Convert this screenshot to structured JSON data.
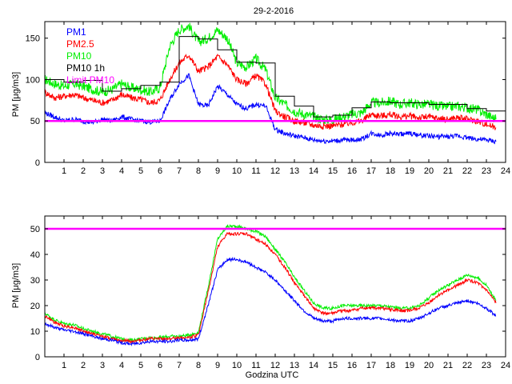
{
  "chart_data": [
    {
      "type": "line",
      "title": "29-2-2016",
      "xlabel": "",
      "ylabel": "PM [μg/m3]",
      "xlim": [
        0,
        24
      ],
      "ylim": [
        0,
        170
      ],
      "xticks": [
        1,
        2,
        3,
        4,
        5,
        6,
        7,
        8,
        9,
        10,
        11,
        12,
        13,
        14,
        15,
        16,
        17,
        18,
        19,
        20,
        21,
        22,
        23,
        24
      ],
      "yticks": [
        0,
        50,
        100,
        150
      ],
      "grid": false,
      "legend_position": "top-left",
      "colors": {
        "PM1": "#0000ff",
        "PM2.5": "#ff0000",
        "PM10": "#00ee00",
        "PM10 1h": "#000000",
        "Limit PM10": "#ff00ff"
      },
      "series": [
        {
          "name": "PM1",
          "x": [
            0.0,
            0.5,
            1.0,
            1.5,
            2.0,
            2.5,
            3.0,
            3.5,
            4.0,
            4.5,
            5.0,
            5.5,
            6.0,
            6.5,
            7.0,
            7.5,
            8.0,
            8.5,
            9.0,
            9.5,
            10.0,
            10.5,
            11.0,
            11.5,
            12.0,
            12.5,
            13.0,
            13.5,
            14.0,
            14.5,
            15.0,
            15.5,
            16.0,
            16.5,
            17.0,
            17.5,
            18.0,
            18.5,
            19.0,
            19.5,
            20.0,
            20.5,
            21.0,
            21.5,
            22.0,
            22.5,
            23.0,
            23.5
          ],
          "values": [
            60,
            55,
            50,
            52,
            50,
            48,
            52,
            50,
            55,
            52,
            50,
            49,
            50,
            75,
            95,
            105,
            70,
            68,
            92,
            82,
            70,
            65,
            70,
            68,
            40,
            35,
            32,
            30,
            27,
            26,
            26,
            27,
            27,
            28,
            35,
            33,
            35,
            34,
            35,
            33,
            32,
            31,
            31,
            32,
            30,
            28,
            27,
            25
          ]
        },
        {
          "name": "PM2.5",
          "x": [
            0.0,
            0.5,
            1.0,
            1.5,
            2.0,
            2.5,
            3.0,
            3.5,
            4.0,
            4.5,
            5.0,
            5.5,
            6.0,
            6.5,
            7.0,
            7.5,
            8.0,
            8.5,
            9.0,
            9.5,
            10.0,
            10.5,
            11.0,
            11.5,
            12.0,
            12.5,
            13.0,
            13.5,
            14.0,
            14.5,
            15.0,
            15.5,
            16.0,
            16.5,
            17.0,
            17.5,
            18.0,
            18.5,
            19.0,
            19.5,
            20.0,
            20.5,
            21.0,
            21.5,
            22.0,
            22.5,
            23.0,
            23.5
          ],
          "values": [
            85,
            78,
            80,
            82,
            78,
            75,
            72,
            75,
            82,
            78,
            76,
            72,
            75,
            100,
            120,
            130,
            110,
            115,
            128,
            118,
            100,
            95,
            105,
            95,
            62,
            55,
            50,
            48,
            45,
            44,
            44,
            46,
            48,
            50,
            58,
            56,
            58,
            55,
            56,
            54,
            55,
            53,
            52,
            54,
            52,
            50,
            46,
            42
          ]
        },
        {
          "name": "PM10",
          "x": [
            0.0,
            0.5,
            1.0,
            1.5,
            2.0,
            2.5,
            3.0,
            3.5,
            4.0,
            4.5,
            5.0,
            5.5,
            6.0,
            6.5,
            7.0,
            7.5,
            8.0,
            8.5,
            9.0,
            9.5,
            10.0,
            10.5,
            11.0,
            11.5,
            12.0,
            12.5,
            13.0,
            13.5,
            14.0,
            14.5,
            15.0,
            15.5,
            16.0,
            16.5,
            17.0,
            17.5,
            18.0,
            18.5,
            19.0,
            19.5,
            20.0,
            20.5,
            21.0,
            21.5,
            22.0,
            22.5,
            23.0,
            23.5
          ],
          "values": [
            100,
            95,
            92,
            95,
            92,
            88,
            85,
            88,
            95,
            90,
            88,
            85,
            90,
            140,
            160,
            165,
            145,
            150,
            160,
            150,
            120,
            115,
            125,
            112,
            78,
            70,
            62,
            58,
            55,
            52,
            52,
            55,
            58,
            60,
            72,
            72,
            74,
            70,
            72,
            70,
            70,
            68,
            67,
            68,
            66,
            64,
            58,
            52
          ]
        },
        {
          "name": "PM10 1h",
          "x": [
            0,
            1,
            1,
            2,
            2,
            3,
            3,
            4,
            4,
            5,
            5,
            6,
            6,
            7,
            7,
            8,
            8,
            9,
            9,
            10,
            10,
            11,
            11,
            12,
            12,
            13,
            13,
            14,
            14,
            15,
            15,
            16,
            16,
            17,
            17,
            18,
            18,
            19,
            19,
            20,
            20,
            21,
            21,
            22,
            22,
            23,
            23,
            24
          ],
          "values": [
            100,
            100,
            97,
            97,
            99,
            99,
            86,
            86,
            89,
            89,
            93,
            93,
            97,
            97,
            152,
            152,
            149,
            149,
            136,
            136,
            121,
            121,
            120,
            120,
            80,
            80,
            68,
            68,
            55,
            55,
            57,
            57,
            66,
            66,
            73,
            73,
            72,
            72,
            72,
            72,
            70,
            70,
            70,
            70,
            65,
            65,
            62,
            62
          ]
        },
        {
          "name": "Limit PM10",
          "x": [
            0,
            24
          ],
          "values": [
            50,
            50
          ]
        }
      ]
    },
    {
      "type": "line",
      "title": "",
      "xlabel": "Godzina UTC",
      "ylabel": "PM [μg/m3]",
      "xlim": [
        0,
        24
      ],
      "ylim": [
        0,
        55
      ],
      "xticks": [
        1,
        2,
        3,
        4,
        5,
        6,
        7,
        8,
        9,
        10,
        11,
        12,
        13,
        14,
        15,
        16,
        17,
        18,
        19,
        20,
        21,
        22,
        23,
        24
      ],
      "yticks": [
        0,
        10,
        20,
        30,
        40,
        50
      ],
      "grid": false,
      "colors": {
        "PM1": "#0000ff",
        "PM2.5": "#ff0000",
        "PM10": "#00ee00",
        "Limit PM10": "#ff00ff"
      },
      "series": [
        {
          "name": "PM1",
          "x": [
            0.0,
            0.5,
            1.0,
            1.5,
            2.0,
            2.5,
            3.0,
            3.5,
            4.0,
            4.5,
            5.0,
            5.5,
            6.0,
            6.5,
            7.0,
            7.5,
            8.0,
            8.5,
            9.0,
            9.5,
            10.0,
            10.5,
            11.0,
            11.5,
            12.0,
            12.5,
            13.0,
            13.5,
            14.0,
            14.5,
            15.0,
            15.5,
            16.0,
            16.5,
            17.0,
            17.5,
            18.0,
            18.5,
            19.0,
            19.5,
            20.0,
            20.5,
            21.0,
            21.5,
            22.0,
            22.5,
            23.0,
            23.5
          ],
          "values": [
            13,
            11.5,
            10.5,
            10,
            9,
            8,
            7,
            6.5,
            5.5,
            5,
            5.5,
            6,
            6,
            6,
            6.5,
            6.5,
            7,
            20,
            34,
            38,
            38,
            37,
            35,
            33,
            30,
            26,
            22,
            18,
            15,
            14,
            14,
            15,
            15,
            15,
            15,
            15,
            14.5,
            14,
            14,
            15,
            17,
            19,
            20,
            21,
            22,
            21,
            19,
            16
          ]
        },
        {
          "name": "PM2.5",
          "x": [
            0.0,
            0.5,
            1.0,
            1.5,
            2.0,
            2.5,
            3.0,
            3.5,
            4.0,
            4.5,
            5.0,
            5.5,
            6.0,
            6.5,
            7.0,
            7.5,
            8.0,
            8.5,
            9.0,
            9.5,
            10.0,
            10.5,
            11.0,
            11.5,
            12.0,
            12.5,
            13.0,
            13.5,
            14.0,
            14.5,
            15.0,
            15.5,
            16.0,
            16.5,
            17.0,
            17.5,
            18.0,
            18.5,
            19.0,
            19.5,
            20.0,
            20.5,
            21.0,
            21.5,
            22.0,
            22.5,
            23.0,
            23.5
          ],
          "values": [
            16,
            13.5,
            12,
            11.5,
            10,
            9,
            8,
            7,
            6.5,
            6,
            6.5,
            7,
            7,
            7,
            7.5,
            7.5,
            8.5,
            25,
            43,
            48,
            48,
            48,
            46,
            44,
            40,
            35,
            29,
            24,
            19,
            17,
            17,
            18,
            18,
            19,
            19,
            19,
            18.5,
            18,
            18,
            19,
            21,
            24,
            26,
            28,
            30,
            29,
            26,
            21
          ]
        },
        {
          "name": "PM10",
          "x": [
            0.0,
            0.5,
            1.0,
            1.5,
            2.0,
            2.5,
            3.0,
            3.5,
            4.0,
            4.5,
            5.0,
            5.5,
            6.0,
            6.5,
            7.0,
            7.5,
            8.0,
            8.5,
            9.0,
            9.5,
            10.0,
            10.5,
            11.0,
            11.5,
            12.0,
            12.5,
            13.0,
            13.5,
            14.0,
            14.5,
            15.0,
            15.5,
            16.0,
            16.5,
            17.0,
            17.5,
            18.0,
            18.5,
            19.0,
            19.5,
            20.0,
            20.5,
            21.0,
            21.5,
            22.0,
            22.5,
            23.0,
            23.5
          ],
          "values": [
            17,
            14.5,
            13,
            12.5,
            11,
            10,
            9,
            8,
            7,
            6.5,
            7,
            7.5,
            7.5,
            8,
            8,
            8.5,
            9.5,
            27,
            46,
            51,
            51,
            50,
            49,
            47,
            42,
            37,
            31,
            26,
            21,
            19,
            19,
            20,
            20,
            20,
            20,
            20,
            19.5,
            19,
            19,
            20,
            23,
            26,
            28,
            30,
            32,
            31,
            28,
            22
          ]
        },
        {
          "name": "Limit PM10",
          "x": [
            0,
            24
          ],
          "values": [
            50,
            50
          ]
        }
      ]
    }
  ]
}
